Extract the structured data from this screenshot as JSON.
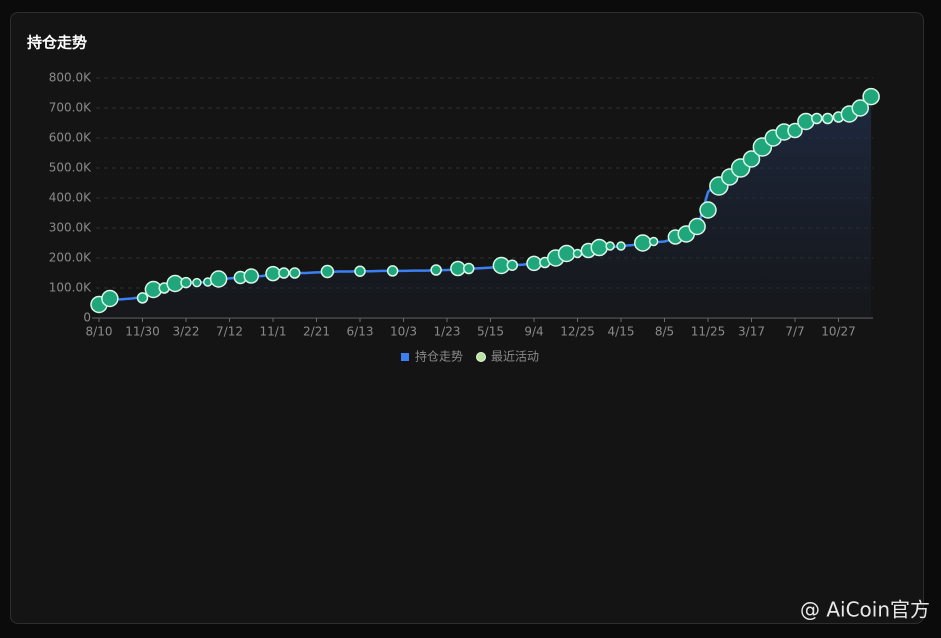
{
  "chart_data": {
    "type": "line",
    "title": "持仓走势",
    "categories": [
      "8/10",
      null,
      null,
      null,
      "11/30",
      null,
      null,
      null,
      "3/22",
      null,
      null,
      null,
      "7/12",
      null,
      null,
      null,
      "11/1",
      null,
      null,
      null,
      "2/21",
      null,
      null,
      null,
      "6/13",
      null,
      null,
      null,
      "10/3",
      null,
      null,
      null,
      "1/23",
      null,
      null,
      null,
      "5/15",
      null,
      null,
      null,
      "9/4",
      null,
      null,
      null,
      "12/25",
      null,
      null,
      null,
      "4/15",
      null,
      null,
      null,
      "8/5",
      null,
      null,
      null,
      "11/25",
      null,
      null,
      null,
      "3/17",
      null,
      null,
      null,
      "7/7",
      null,
      null,
      null,
      "10/27",
      null,
      null,
      null
    ],
    "series": [
      {
        "name": "持仓走势",
        "color": "#3b7ff0",
        "values": [
          60000,
          62000,
          62000,
          65000,
          70000,
          95000,
          100000,
          115000,
          118000,
          118000,
          120000,
          128000,
          132000,
          135000,
          138000,
          140000,
          145000,
          148000,
          150000,
          150000,
          152000,
          153000,
          155000,
          155000,
          156000,
          156000,
          157000,
          157000,
          157000,
          158000,
          158000,
          159000,
          160000,
          162000,
          164000,
          166000,
          168000,
          172000,
          176000,
          178000,
          182000,
          185000,
          190000,
          200000,
          210000,
          215000,
          225000,
          235000,
          240000,
          243000,
          248000,
          252000,
          255000,
          265000,
          280000,
          295000,
          420000,
          460000,
          480000,
          510000,
          535000,
          565000,
          590000,
          610000,
          625000,
          645000,
          660000,
          665000,
          670000,
          685000,
          705000,
          735000
        ]
      },
      {
        "name": "最近活动",
        "color": "#1fa67a",
        "type": "bubble",
        "values": [
          45000,
          65000,
          null,
          null,
          67000,
          95000,
          100000,
          115000,
          118000,
          118000,
          120000,
          130000,
          null,
          135000,
          140000,
          null,
          148000,
          150000,
          150000,
          null,
          null,
          155000,
          null,
          null,
          156000,
          null,
          null,
          157000,
          null,
          null,
          null,
          160000,
          null,
          165000,
          165000,
          null,
          null,
          175000,
          176000,
          null,
          182000,
          185000,
          200000,
          215000,
          215000,
          225000,
          235000,
          240000,
          240000,
          null,
          250000,
          255000,
          null,
          270000,
          280000,
          305000,
          360000,
          440000,
          470000,
          500000,
          530000,
          570000,
          600000,
          620000,
          625000,
          655000,
          665000,
          665000,
          670000,
          680000,
          700000,
          738000
        ],
        "sizes": [
          8,
          8,
          null,
          null,
          5,
          8,
          5,
          8,
          5,
          4,
          4,
          8,
          null,
          6,
          7,
          null,
          7,
          5,
          5,
          null,
          null,
          6,
          null,
          null,
          5,
          null,
          null,
          5,
          null,
          null,
          null,
          5,
          null,
          7,
          5,
          null,
          null,
          8,
          5,
          null,
          7,
          5,
          8,
          8,
          4,
          7,
          8,
          4,
          4,
          null,
          8,
          4,
          null,
          7,
          8,
          8,
          8,
          9,
          8,
          9,
          8,
          9,
          8,
          8,
          7,
          8,
          5,
          5,
          5,
          8,
          8,
          8
        ]
      }
    ],
    "ylim": [
      0,
      800000
    ],
    "yticks": [
      0,
      {
        "value": 100000,
        "label": "100.0K"
      },
      {
        "value": 200000,
        "label": "200.0K"
      },
      {
        "value": 300000,
        "label": "300.0K"
      },
      {
        "value": 400000,
        "label": "400.0K"
      },
      {
        "value": 500000,
        "label": "500.0K"
      },
      {
        "value": 600000,
        "label": "600.0K"
      },
      {
        "value": 700000,
        "label": "700.0K"
      },
      {
        "value": 800000,
        "label": "800.0K"
      }
    ],
    "grid": true,
    "legend": "bottom"
  },
  "watermark": "@ AiCoin官方"
}
